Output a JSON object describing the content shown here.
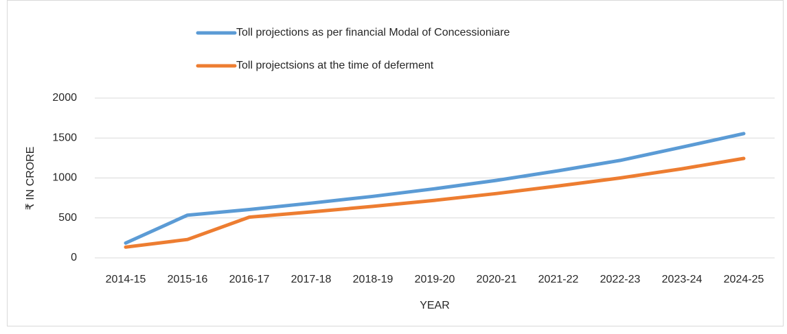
{
  "chart_data": {
    "type": "line",
    "x_label": "YEAR",
    "y_label": "₹ IN CRORE",
    "categories": [
      "2014-15",
      "2015-16",
      "2016-17",
      "2017-18",
      "2018-19",
      "2019-20",
      "2020-21",
      "2021-22",
      "2022-23",
      "2023-24",
      "2024-25"
    ],
    "series": [
      {
        "name": "Toll projections as per financial Modal of Concessioniare",
        "color": "#5b9bd5",
        "values": [
          185,
          535,
          605,
          685,
          770,
          865,
          970,
          1090,
          1220,
          1385,
          1555
        ]
      },
      {
        "name": "Toll projectsions at the time of deferment",
        "color": "#ed7d31",
        "values": [
          135,
          230,
          510,
          575,
          645,
          720,
          805,
          900,
          1000,
          1115,
          1245
        ]
      }
    ],
    "ylim": [
      0,
      2000
    ],
    "yticks": [
      0,
      500,
      1000,
      1500,
      2000
    ],
    "grid": true,
    "legend": "top"
  }
}
